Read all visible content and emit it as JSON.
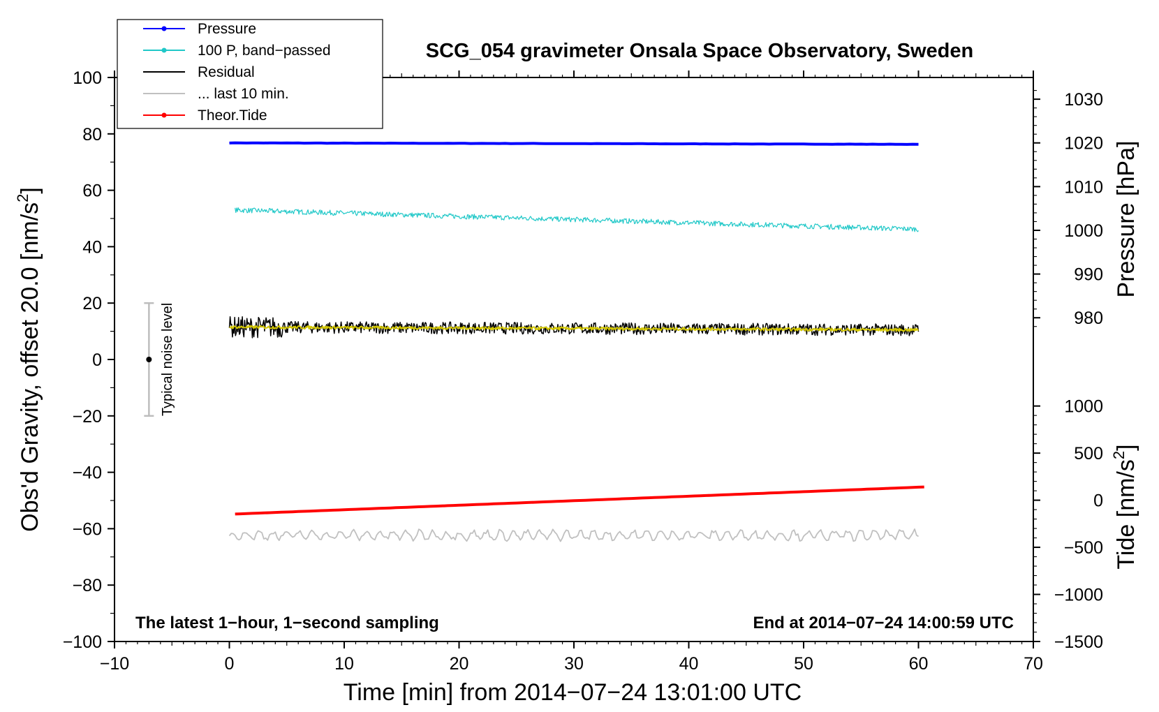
{
  "chart_data": {
    "type": "line",
    "title": "SCG_054 gravimeter Onsala Space Observatory, Sweden",
    "xlabel": "Time [min] from 2014−07−24 13:01:00 UTC",
    "ylabel_left": "Obs'd Gravity, offset 20.0 [nm/s",
    "ylabel_left_sup": "2",
    "ylabel_left_end": "]",
    "ylabel_right_top": "Pressure [hPa]",
    "ylabel_right_bottom": "Tide [nm/s",
    "ylabel_right_bottom_sup": "2",
    "ylabel_right_bottom_end": "]",
    "xlim": [
      -10,
      70
    ],
    "ylim": [
      -100,
      100
    ],
    "x_ticks": [
      -10,
      0,
      10,
      20,
      30,
      40,
      50,
      60,
      70
    ],
    "x_tick_labels": [
      "−10",
      "0",
      "10",
      "20",
      "30",
      "40",
      "50",
      "60",
      "70"
    ],
    "y_ticks": [
      -100,
      -80,
      -60,
      -40,
      -20,
      0,
      20,
      40,
      60,
      80,
      100
    ],
    "y_tick_labels": [
      "−100",
      "−80",
      "−60",
      "−40",
      "−20",
      "0",
      "20",
      "40",
      "60",
      "80",
      "100"
    ],
    "pressure_axis": {
      "ticks": [
        980,
        990,
        1000,
        1010,
        1020,
        1030
      ],
      "tick_labels": [
        "980",
        "990",
        "1000",
        "1010",
        "1020",
        "1030"
      ],
      "gravity_at_980": 14.8,
      "gravity_at_1030": 92.3
    },
    "tide_axis": {
      "ticks": [
        -1500,
        -1000,
        -500,
        0,
        500,
        1000
      ],
      "tick_labels": [
        "−1500",
        "−1000",
        "−500",
        "0",
        "500",
        "1000"
      ],
      "gravity_at_minus1500": -100,
      "gravity_at_1000": -16.5
    },
    "legend": {
      "position": "top-left",
      "entries": [
        {
          "label": "Pressure",
          "color": "#0000ff",
          "marker": true
        },
        {
          "label": "100 P, band−passed",
          "color": "#20c8c8",
          "marker": true
        },
        {
          "label": "Residual",
          "color": "#000000",
          "marker": false
        },
        {
          "label": "... last 10 min.",
          "color": "#c0c0c0",
          "marker": false
        },
        {
          "label": "Theor.Tide",
          "color": "#ff0000",
          "marker": true
        }
      ]
    },
    "series": [
      {
        "name": "Pressure",
        "color": "#0000ff",
        "width": 4,
        "kind": "trend",
        "x_range": [
          0,
          60
        ],
        "y_start": 76.8,
        "y_end": 76.3,
        "noise": 0.1
      },
      {
        "name": "100 P, band−passed",
        "color": "#20c8c8",
        "width": 1.2,
        "kind": "noisy",
        "x_range": [
          0.5,
          60
        ],
        "y_start": 53,
        "y_end": 46.2,
        "noise": 0.9
      },
      {
        "name": "Residual",
        "color": "#000000",
        "width": 1.5,
        "kind": "noisy",
        "x_range": [
          0,
          60
        ],
        "y_start": 11.5,
        "y_end": 10.5,
        "noise": 2.1
      },
      {
        "name": "Residual smoothed",
        "color": "#d4c800",
        "width": 2,
        "kind": "noisy",
        "x_range": [
          0,
          60
        ],
        "y_start": 11.5,
        "y_end": 10.5,
        "noise": 0.5
      },
      {
        "name": "Theor.Tide",
        "color": "#ff0000",
        "width": 4,
        "kind": "trend",
        "x_range": [
          0.5,
          60.5
        ],
        "y_start": -54.8,
        "y_end": -45.2,
        "noise": 0
      },
      {
        "name": "... last 10 min.",
        "color": "#c0c0c0",
        "width": 1.8,
        "kind": "wavy",
        "x_range": [
          0,
          60
        ],
        "y_start": -62.3,
        "y_end": -62.3,
        "noise": 1.4
      }
    ],
    "noise_bar": {
      "label": "Typical noise level",
      "x": -7,
      "y": 0,
      "y_low": -20,
      "y_high": 20
    },
    "annotations": {
      "bottom_left": "The latest 1−hour, 1−second sampling",
      "bottom_right": "End at 2014−07−24 14:00:59 UTC"
    }
  }
}
